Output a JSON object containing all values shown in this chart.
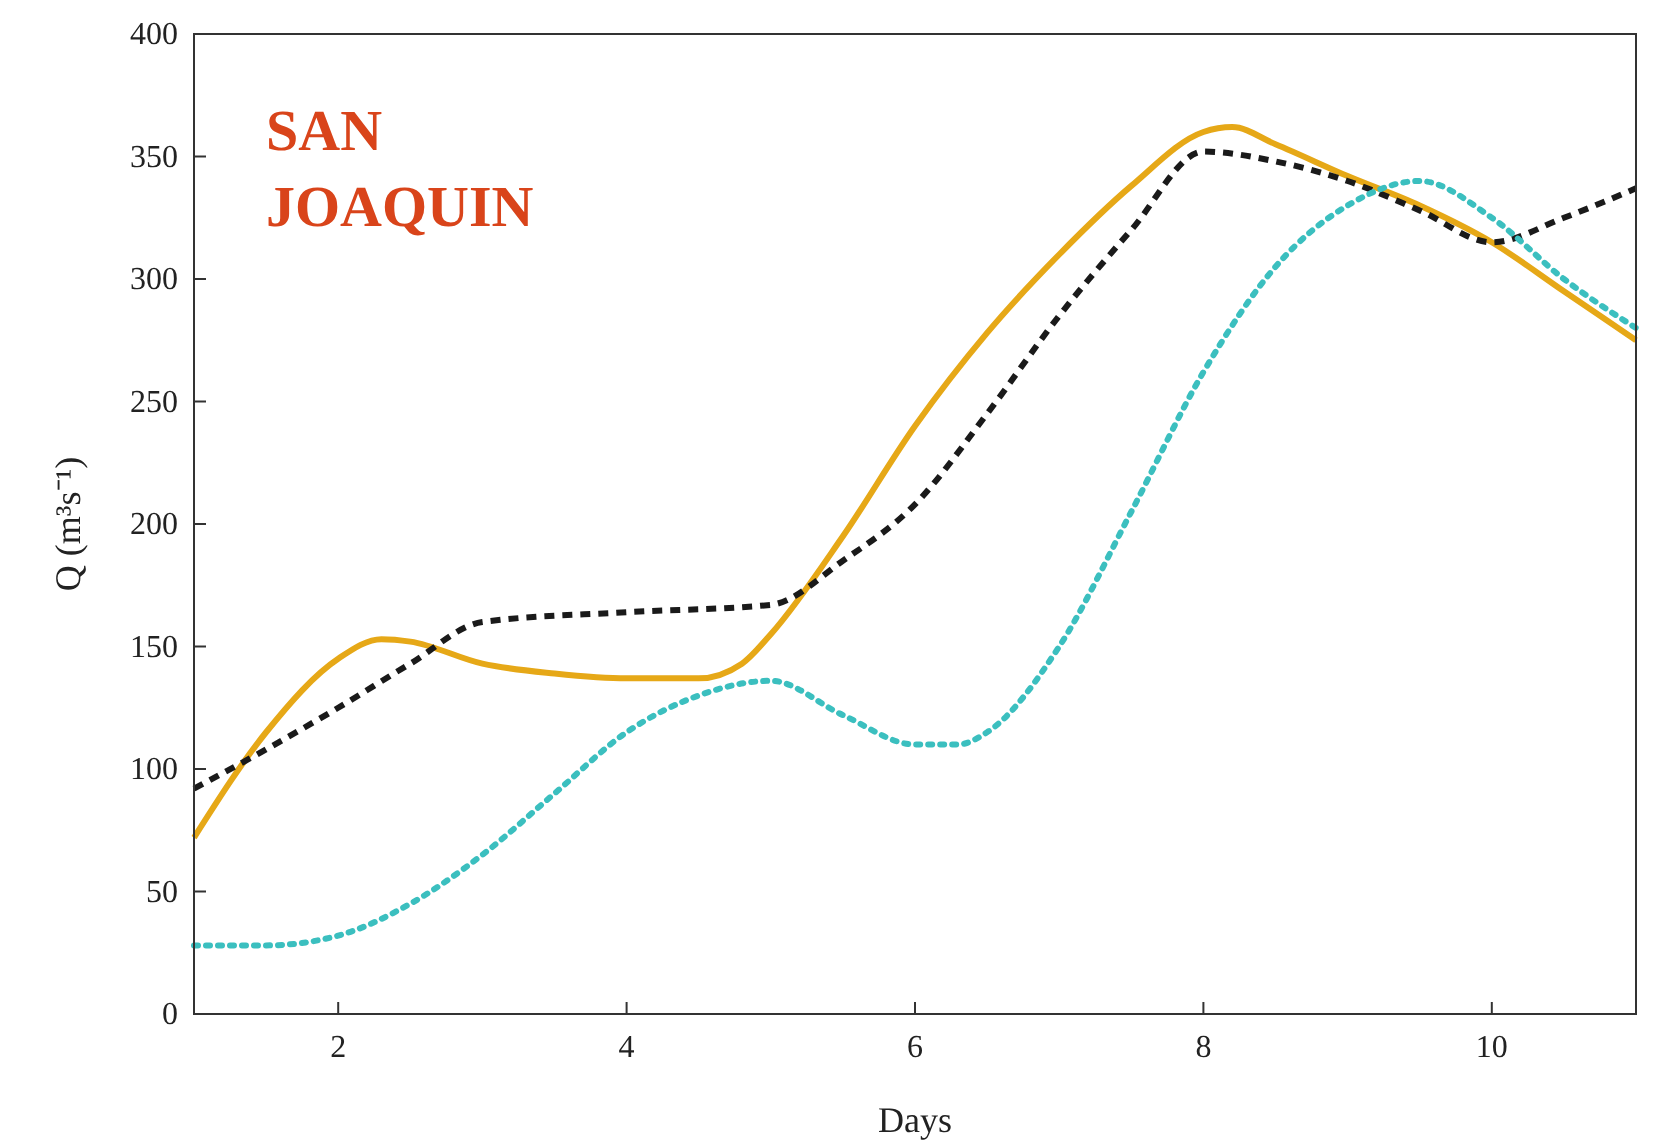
{
  "chart_data": {
    "type": "line",
    "xlabel": "Days",
    "ylabel": "Q (m³s⁻¹)",
    "annotations": [
      "SAN JOAQUIN"
    ],
    "xlim": [
      1,
      11
    ],
    "xticks": [
      2,
      4,
      6,
      8,
      10
    ],
    "ylim": [
      0,
      400
    ],
    "yticks": [
      0,
      50,
      100,
      150,
      200,
      250,
      300,
      350,
      400
    ],
    "grid": false,
    "series": [
      {
        "color": "#e6a817",
        "line_style": "solid",
        "x": [
          1,
          1.5,
          2,
          2.3,
          2.5,
          3,
          3.5,
          4,
          4.5,
          4.8,
          5,
          5.5,
          6,
          6.5,
          7,
          7.5,
          8,
          8.2,
          8.5,
          9,
          9.5,
          10,
          10.5,
          11
        ],
        "values": [
          72,
          115,
          145,
          153,
          152,
          143,
          139,
          137,
          137,
          143,
          155,
          195,
          240,
          278,
          310,
          338,
          360,
          362,
          355,
          342,
          330,
          315,
          295,
          275
        ]
      },
      {
        "color": "#1a1a1a",
        "line_style": "dashed",
        "x": [
          1,
          1.5,
          2,
          2.5,
          3,
          4,
          5,
          5.5,
          6,
          6.5,
          7,
          7.5,
          8,
          8.5,
          9,
          9.5,
          10,
          10.5,
          11
        ],
        "values": [
          92,
          108,
          125,
          143,
          160,
          164,
          167,
          185,
          208,
          245,
          285,
          320,
          352,
          348,
          340,
          328,
          315,
          325,
          337
        ]
      },
      {
        "color": "#3bbfbf",
        "line_style": "dotted",
        "x": [
          1,
          1.5,
          2,
          2.5,
          3,
          3.5,
          4,
          4.5,
          5,
          5.5,
          6,
          6.3,
          6.5,
          7,
          7.5,
          8,
          8.5,
          9,
          9.5,
          10,
          10.5,
          11
        ],
        "values": [
          28,
          28,
          32,
          45,
          65,
          90,
          115,
          130,
          136,
          122,
          110,
          110,
          115,
          150,
          205,
          262,
          305,
          330,
          340,
          325,
          300,
          280
        ]
      }
    ]
  }
}
